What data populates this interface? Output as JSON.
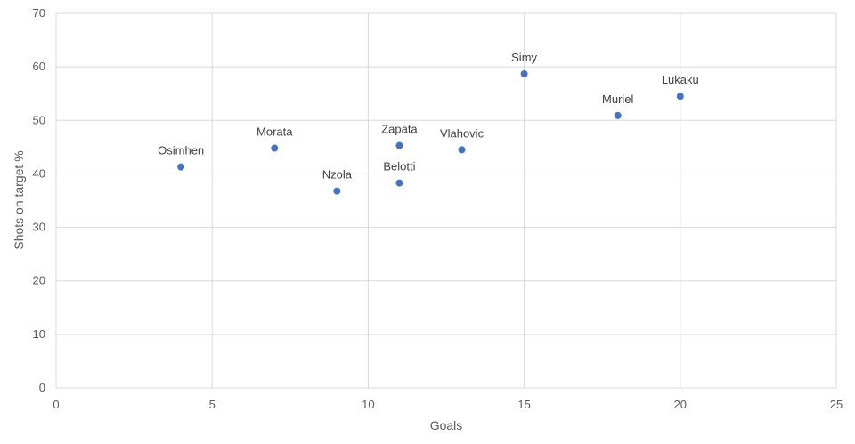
{
  "chart_data": {
    "type": "scatter",
    "title": "",
    "xlabel": "Goals",
    "ylabel": "Shots on target %",
    "xlim": [
      0,
      25
    ],
    "ylim": [
      0,
      70
    ],
    "xticks": [
      0,
      5,
      10,
      15,
      20,
      25
    ],
    "yticks": [
      0,
      10,
      20,
      30,
      40,
      50,
      60,
      70
    ],
    "grid": true,
    "colors": {
      "point": "#4472c4"
    },
    "points": [
      {
        "label": "Osimhen",
        "x": 4,
        "y": 41.3
      },
      {
        "label": "Morata",
        "x": 7,
        "y": 44.8
      },
      {
        "label": "Nzola",
        "x": 9,
        "y": 36.8
      },
      {
        "label": "Zapata",
        "x": 11,
        "y": 45.3
      },
      {
        "label": "Belotti",
        "x": 11,
        "y": 38.3
      },
      {
        "label": "Vlahovic",
        "x": 13,
        "y": 44.5
      },
      {
        "label": "Simy",
        "x": 15,
        "y": 58.7
      },
      {
        "label": "Muriel",
        "x": 18,
        "y": 50.9
      },
      {
        "label": "Lukaku",
        "x": 20,
        "y": 54.5
      }
    ]
  }
}
